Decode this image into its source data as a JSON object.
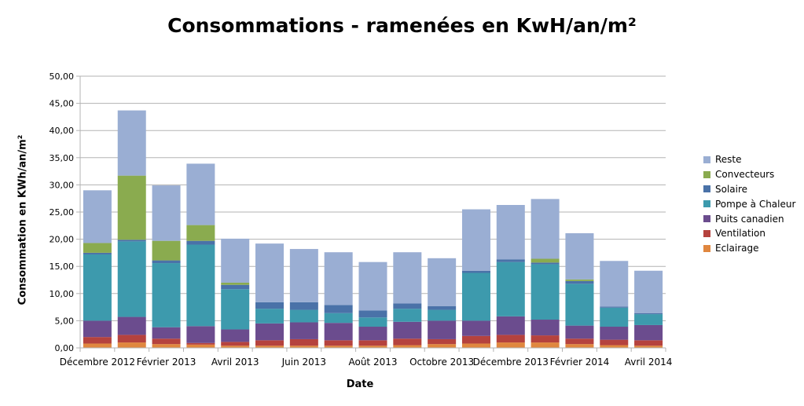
{
  "chart_data": {
    "type": "bar",
    "stacked": true,
    "title": "Consommations - ramenées en KwH/an/m²",
    "xlabel": "Date",
    "ylabel": "Consommation en KWh/an/m²",
    "ylim": [
      0,
      50
    ],
    "yticks": [
      "0,00",
      "5,00",
      "10,00",
      "15,00",
      "20,00",
      "25,00",
      "30,00",
      "35,00",
      "40,00",
      "45,00",
      "50,00"
    ],
    "grid": true,
    "legend_position": "right",
    "x_tick_labels": [
      {
        "index": 0,
        "label": "Décembre 2012"
      },
      {
        "index": 2,
        "label": "Février 2013"
      },
      {
        "index": 4,
        "label": "Avril 2013"
      },
      {
        "index": 6,
        "label": "Juin 2013"
      },
      {
        "index": 8,
        "label": "Août 2013"
      },
      {
        "index": 10,
        "label": "Octobre 2013"
      },
      {
        "index": 12,
        "label": "Décembre 2013"
      },
      {
        "index": 14,
        "label": "Février 2014"
      },
      {
        "index": 16,
        "label": "Avril 2014"
      }
    ],
    "bar_count": 17,
    "series": [
      {
        "name": "Eclairage",
        "color": "#e0873f",
        "values": [
          0.8,
          1.0,
          0.7,
          0.6,
          0.4,
          0.4,
          0.4,
          0.4,
          0.4,
          0.5,
          0.7,
          0.8,
          1.0,
          1.0,
          0.7,
          0.5,
          0.4
        ]
      },
      {
        "name": "Ventilation",
        "color": "#b5423e",
        "values": [
          1.2,
          1.4,
          1.0,
          0.3,
          0.7,
          1.0,
          1.2,
          1.0,
          1.0,
          1.2,
          0.9,
          1.4,
          1.4,
          1.3,
          1.0,
          1.0,
          1.0
        ]
      },
      {
        "name": "Puits canadien",
        "color": "#6b4c8e",
        "values": [
          3.0,
          3.3,
          2.1,
          3.1,
          2.3,
          3.1,
          3.1,
          3.2,
          2.5,
          3.1,
          3.4,
          2.8,
          3.4,
          2.9,
          2.4,
          2.4,
          2.8
        ]
      },
      {
        "name": "Pompe à Chaleur",
        "color": "#3d9aad",
        "values": [
          12.2,
          13.9,
          11.8,
          15.0,
          7.4,
          2.7,
          2.3,
          1.8,
          1.7,
          2.4,
          2.0,
          8.8,
          10.0,
          10.2,
          7.7,
          3.5,
          2.0
        ]
      },
      {
        "name": "Solaire",
        "color": "#4a72a8",
        "values": [
          0.3,
          0.3,
          0.5,
          0.7,
          0.8,
          1.2,
          1.4,
          1.5,
          1.3,
          1.0,
          0.7,
          0.4,
          0.5,
          0.3,
          0.5,
          0.2,
          0.2
        ]
      },
      {
        "name": "Convecteurs",
        "color": "#8aab4f",
        "values": [
          1.8,
          11.8,
          3.6,
          2.9,
          0.4,
          0.0,
          0.0,
          0.0,
          0.0,
          0.0,
          0.0,
          0.0,
          0.0,
          0.7,
          0.3,
          0.0,
          0.0
        ]
      },
      {
        "name": "Reste",
        "color": "#9aaed3",
        "values": [
          9.7,
          12.0,
          10.2,
          11.3,
          8.1,
          10.8,
          9.8,
          9.7,
          8.9,
          9.4,
          8.8,
          11.3,
          10.0,
          11.0,
          8.5,
          8.4,
          7.8
        ]
      }
    ]
  },
  "legend_order": [
    "Reste",
    "Convecteurs",
    "Solaire",
    "Pompe à Chaleur",
    "Puits canadien",
    "Ventilation",
    "Eclairage"
  ]
}
